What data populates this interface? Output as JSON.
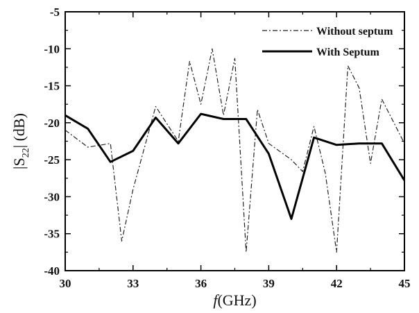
{
  "chart_data": {
    "type": "line",
    "xlabel_prefix": "f",
    "xlabel_suffix": "(GHz)",
    "ylabel_prefix": "|S",
    "ylabel_subscript": "22",
    "ylabel_suffix": "| (dB)",
    "xlim": [
      30,
      45
    ],
    "ylim": [
      -40,
      -5
    ],
    "xticks": [
      30,
      33,
      36,
      39,
      42,
      45
    ],
    "yticks": [
      -5,
      -10,
      -15,
      -20,
      -25,
      -30,
      -35,
      -40
    ],
    "legend_position": "top-right",
    "grid": false,
    "series": [
      {
        "name": "Without septum",
        "style": "dash-dot",
        "color": "#222222",
        "x": [
          30,
          31,
          32,
          32.5,
          33,
          34,
          35,
          35.5,
          36,
          36.5,
          37,
          37.5,
          38,
          38.5,
          39,
          40,
          40.5,
          41,
          41.5,
          42,
          42.5,
          43,
          43.5,
          44,
          45
        ],
        "y": [
          -21,
          -23.3,
          -22.8,
          -36,
          -29,
          -17.8,
          -22.5,
          -11.7,
          -17.5,
          -10,
          -19,
          -11.3,
          -37.5,
          -18.2,
          -22.8,
          -25,
          -26.6,
          -20.5,
          -26.8,
          -37.5,
          -12.3,
          -15.3,
          -25.5,
          -16.8,
          -22.8
        ]
      },
      {
        "name": "With Septum",
        "style": "solid",
        "color": "#000000",
        "x": [
          30,
          31,
          32,
          33,
          34,
          35,
          36,
          37,
          38,
          39,
          40,
          41,
          42,
          43,
          44,
          45
        ],
        "y": [
          -19,
          -20.8,
          -25.3,
          -23.8,
          -19.3,
          -22.8,
          -18.8,
          -19.5,
          -19.5,
          -24.2,
          -33,
          -22,
          -23,
          -22.8,
          -22.8,
          -27.8
        ]
      }
    ]
  }
}
